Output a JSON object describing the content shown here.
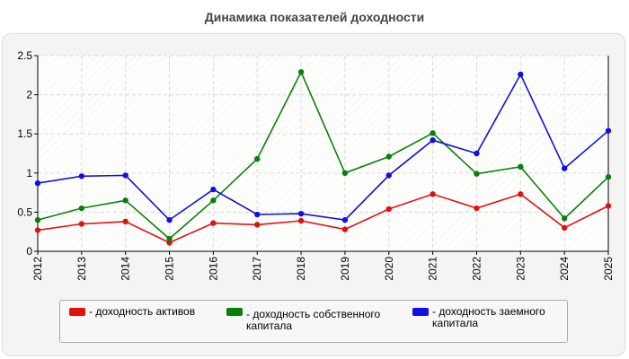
{
  "title": "Динамика показателей доходности",
  "chart_data": {
    "type": "line",
    "title": "Динамика показателей доходности",
    "x": [
      "2012",
      "2013",
      "2014",
      "2015",
      "2016",
      "2017",
      "2018",
      "2019",
      "2020",
      "2021",
      "2022",
      "2023",
      "2024",
      "2025"
    ],
    "ylim": [
      0,
      2.5
    ],
    "yticks": [
      "0",
      "0.5",
      "1",
      "1.5",
      "2",
      "2.5"
    ],
    "grid": true,
    "legend_position": "bottom",
    "series": [
      {
        "name": "- доходность активов",
        "color": "#e01010",
        "values": [
          0.27,
          0.35,
          0.38,
          0.11,
          0.36,
          0.34,
          0.39,
          0.28,
          0.54,
          0.73,
          0.55,
          0.73,
          0.3,
          0.58
        ]
      },
      {
        "name": "- доходность собственного капитала",
        "color": "#088008",
        "values": [
          0.4,
          0.55,
          0.65,
          0.16,
          0.65,
          1.18,
          2.29,
          1.0,
          1.21,
          1.51,
          0.99,
          1.08,
          0.42,
          0.95
        ]
      },
      {
        "name": "- доходность заемного капитала",
        "color": "#1010e0",
        "values": [
          0.87,
          0.96,
          0.97,
          0.4,
          0.79,
          0.47,
          0.48,
          0.4,
          0.97,
          1.42,
          1.25,
          2.26,
          1.06,
          1.54
        ]
      }
    ]
  }
}
